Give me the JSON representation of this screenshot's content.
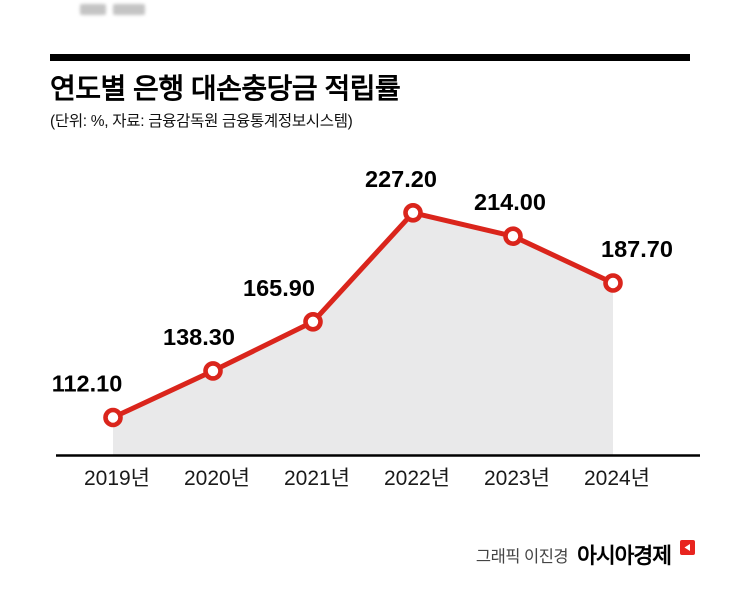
{
  "page": {
    "title": "연도별 은행 대손충당금 적립률",
    "subtitle": "(단위: %, 자료: 금융감독원 금융통계정보시스템)",
    "footer": {
      "credit": "그래픽 이진경",
      "brand": "아시아경제"
    }
  },
  "colors": {
    "line": "#da251c",
    "marker_fill": "#ffffff",
    "area": "#e9e9ea",
    "axis": "#000000",
    "value_label": "#000000",
    "category_label": "#1a1a1a",
    "brand_mark": "#e8241f"
  },
  "chart_data": {
    "type": "line",
    "title": "연도별 은행 대손충당금 적립률",
    "unit": "%",
    "source": "금융감독원 금융통계정보시스템",
    "categories": [
      "2019년",
      "2020년",
      "2021년",
      "2022년",
      "2023년",
      "2024년"
    ],
    "values": [
      112.1,
      138.3,
      165.9,
      227.2,
      214.0,
      187.7
    ],
    "value_labels": [
      "112.10",
      "138.30",
      "165.90",
      "227.20",
      "214.00",
      "187.70"
    ],
    "ylim": [
      91,
      240
    ],
    "area_fill": true,
    "marker": "open-circle",
    "grid": "off",
    "legend": "none"
  }
}
